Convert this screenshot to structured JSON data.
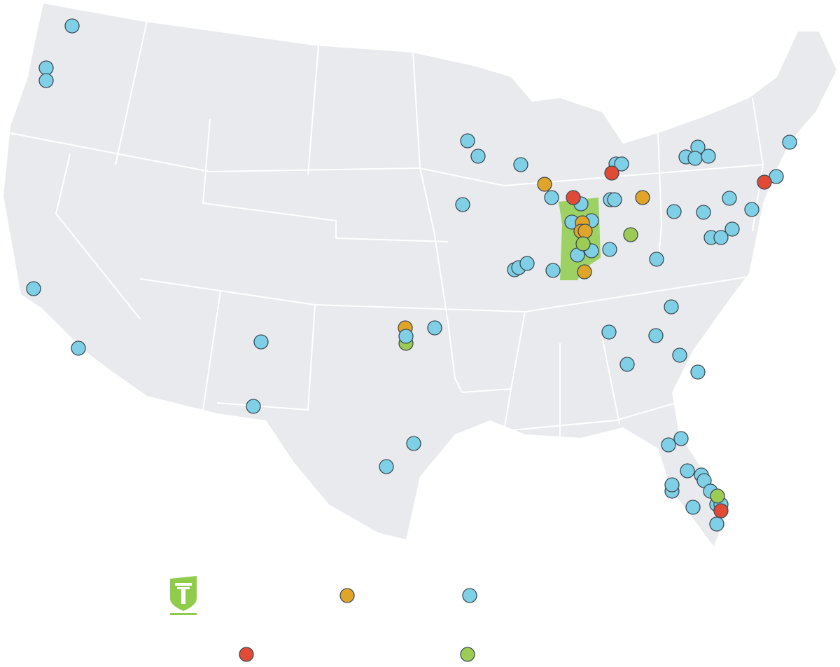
{
  "legend": {
    "items": [
      {
        "color": "#e0a528"
      },
      {
        "color": "#7fd0e6"
      },
      {
        "color": "#e04a36"
      },
      {
        "color": "#9dcc55"
      }
    ]
  }
}
